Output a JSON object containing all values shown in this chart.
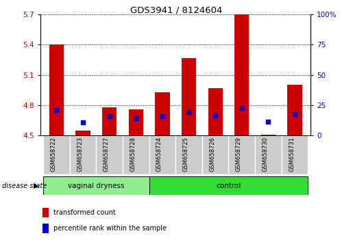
{
  "title": "GDS3941 / 8124604",
  "samples": [
    "GSM658722",
    "GSM658723",
    "GSM658727",
    "GSM658728",
    "GSM658724",
    "GSM658725",
    "GSM658726",
    "GSM658729",
    "GSM658730",
    "GSM658731"
  ],
  "red_values": [
    5.4,
    4.55,
    4.78,
    4.76,
    4.93,
    5.27,
    4.97,
    5.7,
    4.51,
    5.0
  ],
  "blue_values": [
    4.75,
    4.63,
    4.69,
    4.67,
    4.69,
    4.73,
    4.7,
    4.77,
    4.64,
    4.71
  ],
  "ymin": 4.5,
  "ymax": 5.7,
  "yticks": [
    4.5,
    4.8,
    5.1,
    5.4,
    5.7
  ],
  "y2ticks": [
    0,
    25,
    50,
    75,
    100
  ],
  "group1_label": "vaginal dryness",
  "group2_label": "control",
  "group1_color": "#90EE90",
  "group2_color": "#33DD33",
  "bar_color": "#CC0000",
  "dot_color": "#0000CC",
  "bg_color": "#CCCCCC",
  "legend_red": "transformed count",
  "legend_blue": "percentile rank within the sample",
  "disease_state_label": "disease state",
  "group1_count": 4,
  "group2_count": 6,
  "n_samples": 10
}
